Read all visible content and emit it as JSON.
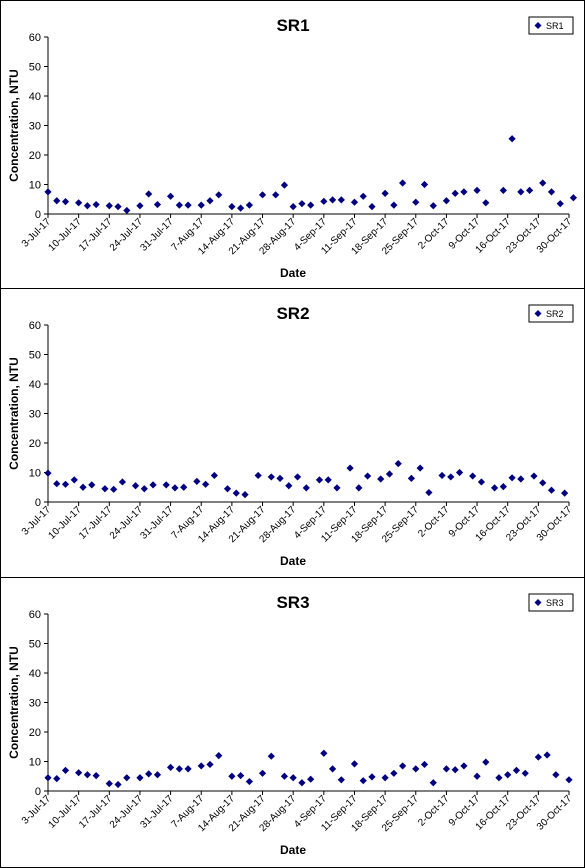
{
  "chart_data": [
    {
      "type": "scatter",
      "title": "SR1",
      "xlabel": "Date",
      "ylabel": "Concentration, NTU",
      "ylim": [
        0,
        60
      ],
      "yticks": [
        "0",
        "10",
        "20",
        "30",
        "40",
        "50",
        "60"
      ],
      "xlim": [
        "2017-07-03",
        "2017-10-30"
      ],
      "xticks": [
        "3-Jul-17",
        "10-Jul-17",
        "17-Jul-17",
        "24-Jul-17",
        "31-Jul-17",
        "7-Aug-17",
        "14-Aug-17",
        "21-Aug-17",
        "28-Aug-17",
        "4-Sep-17",
        "11-Sep-17",
        "18-Sep-17",
        "25-Sep-17",
        "2-Oct-17",
        "9-Oct-17",
        "16-Oct-17",
        "23-Oct-17",
        "30-Oct-17"
      ],
      "legend": "top-right",
      "series": [
        {
          "name": "SR1",
          "color": "#000080",
          "points": [
            [
              "2017-07-03",
              7.5
            ],
            [
              "2017-07-05",
              4.5
            ],
            [
              "2017-07-07",
              4.2
            ],
            [
              "2017-07-10",
              3.8
            ],
            [
              "2017-07-12",
              2.8
            ],
            [
              "2017-07-14",
              3.2
            ],
            [
              "2017-07-17",
              2.8
            ],
            [
              "2017-07-19",
              2.5
            ],
            [
              "2017-07-21",
              1.2
            ],
            [
              "2017-07-24",
              2.8
            ],
            [
              "2017-07-26",
              6.8
            ],
            [
              "2017-07-28",
              3.2
            ],
            [
              "2017-07-31",
              6.0
            ],
            [
              "2017-08-02",
              3.0
            ],
            [
              "2017-08-04",
              3.0
            ],
            [
              "2017-08-07",
              3.0
            ],
            [
              "2017-08-09",
              4.5
            ],
            [
              "2017-08-11",
              6.5
            ],
            [
              "2017-08-14",
              2.5
            ],
            [
              "2017-08-16",
              2.0
            ],
            [
              "2017-08-18",
              3.0
            ],
            [
              "2017-08-21",
              6.5
            ],
            [
              "2017-08-24",
              6.5
            ],
            [
              "2017-08-26",
              9.8
            ],
            [
              "2017-08-28",
              2.5
            ],
            [
              "2017-08-30",
              3.5
            ],
            [
              "2017-09-01",
              3.0
            ],
            [
              "2017-09-04",
              4.3
            ],
            [
              "2017-09-06",
              4.8
            ],
            [
              "2017-09-08",
              4.8
            ],
            [
              "2017-09-11",
              4.0
            ],
            [
              "2017-09-13",
              6.0
            ],
            [
              "2017-09-15",
              2.5
            ],
            [
              "2017-09-18",
              7.0
            ],
            [
              "2017-09-20",
              3.0
            ],
            [
              "2017-09-22",
              10.5
            ],
            [
              "2017-09-25",
              4.0
            ],
            [
              "2017-09-27",
              10.0
            ],
            [
              "2017-09-29",
              2.8
            ],
            [
              "2017-10-02",
              4.5
            ],
            [
              "2017-10-04",
              7.0
            ],
            [
              "2017-10-06",
              7.5
            ],
            [
              "2017-10-09",
              8.0
            ],
            [
              "2017-10-11",
              3.8
            ],
            [
              "2017-10-15",
              8.0
            ],
            [
              "2017-10-17",
              25.5
            ],
            [
              "2017-10-19",
              7.5
            ],
            [
              "2017-10-21",
              8.0
            ],
            [
              "2017-10-24",
              10.5
            ],
            [
              "2017-10-26",
              7.5
            ],
            [
              "2017-10-28",
              3.5
            ],
            [
              "2017-10-31",
              5.5
            ]
          ]
        }
      ]
    },
    {
      "type": "scatter",
      "title": "SR2",
      "xlabel": "Date",
      "ylabel": "Concentration, NTU",
      "ylim": [
        0,
        60
      ],
      "yticks": [
        "0",
        "10",
        "20",
        "30",
        "40",
        "50",
        "60"
      ],
      "xlim": [
        "2017-07-03",
        "2017-10-30"
      ],
      "xticks": [
        "3-Jul-17",
        "10-Jul-17",
        "17-Jul-17",
        "24-Jul-17",
        "31-Jul-17",
        "7-Aug-17",
        "14-Aug-17",
        "21-Aug-17",
        "28-Aug-17",
        "4-Sep-17",
        "11-Sep-17",
        "18-Sep-17",
        "25-Sep-17",
        "2-Oct-17",
        "9-Oct-17",
        "16-Oct-17",
        "23-Oct-17",
        "30-Oct-17"
      ],
      "legend": "top-right",
      "series": [
        {
          "name": "SR2",
          "color": "#000080",
          "points": [
            [
              "2017-07-03",
              9.8
            ],
            [
              "2017-07-05",
              6.2
            ],
            [
              "2017-07-07",
              6.0
            ],
            [
              "2017-07-09",
              7.5
            ],
            [
              "2017-07-11",
              5.0
            ],
            [
              "2017-07-13",
              5.8
            ],
            [
              "2017-07-16",
              4.5
            ],
            [
              "2017-07-18",
              4.3
            ],
            [
              "2017-07-20",
              6.8
            ],
            [
              "2017-07-23",
              5.5
            ],
            [
              "2017-07-25",
              4.5
            ],
            [
              "2017-07-27",
              5.8
            ],
            [
              "2017-07-30",
              5.8
            ],
            [
              "2017-08-01",
              4.8
            ],
            [
              "2017-08-03",
              5.0
            ],
            [
              "2017-08-06",
              7.0
            ],
            [
              "2017-08-08",
              6.0
            ],
            [
              "2017-08-10",
              9.0
            ],
            [
              "2017-08-13",
              4.5
            ],
            [
              "2017-08-15",
              3.0
            ],
            [
              "2017-08-17",
              2.5
            ],
            [
              "2017-08-20",
              9.0
            ],
            [
              "2017-08-23",
              8.5
            ],
            [
              "2017-08-25",
              8.0
            ],
            [
              "2017-08-27",
              5.5
            ],
            [
              "2017-08-29",
              8.5
            ],
            [
              "2017-08-31",
              4.8
            ],
            [
              "2017-09-03",
              7.5
            ],
            [
              "2017-09-05",
              7.5
            ],
            [
              "2017-09-07",
              4.8
            ],
            [
              "2017-09-10",
              11.5
            ],
            [
              "2017-09-12",
              4.8
            ],
            [
              "2017-09-14",
              8.8
            ],
            [
              "2017-09-17",
              7.8
            ],
            [
              "2017-09-19",
              9.5
            ],
            [
              "2017-09-21",
              13.0
            ],
            [
              "2017-09-24",
              8.0
            ],
            [
              "2017-09-26",
              11.5
            ],
            [
              "2017-09-28",
              3.2
            ],
            [
              "2017-10-01",
              9.0
            ],
            [
              "2017-10-03",
              8.5
            ],
            [
              "2017-10-05",
              10.0
            ],
            [
              "2017-10-08",
              8.8
            ],
            [
              "2017-10-10",
              6.8
            ],
            [
              "2017-10-13",
              4.8
            ],
            [
              "2017-10-15",
              5.2
            ],
            [
              "2017-10-17",
              8.2
            ],
            [
              "2017-10-19",
              7.8
            ],
            [
              "2017-10-22",
              8.8
            ],
            [
              "2017-10-24",
              6.5
            ],
            [
              "2017-10-26",
              4.0
            ],
            [
              "2017-10-29",
              3.0
            ]
          ]
        }
      ]
    },
    {
      "type": "scatter",
      "title": "SR3",
      "xlabel": "Date",
      "ylabel": "Concentration, NTU",
      "ylim": [
        0,
        60
      ],
      "yticks": [
        "0",
        "10",
        "20",
        "30",
        "40",
        "50",
        "60"
      ],
      "xlim": [
        "2017-07-03",
        "2017-10-30"
      ],
      "xticks": [
        "3-Jul-17",
        "10-Jul-17",
        "17-Jul-17",
        "24-Jul-17",
        "31-Jul-17",
        "7-Aug-17",
        "14-Aug-17",
        "21-Aug-17",
        "28-Aug-17",
        "4-Sep-17",
        "11-Sep-17",
        "18-Sep-17",
        "25-Sep-17",
        "2-Oct-17",
        "9-Oct-17",
        "16-Oct-17",
        "23-Oct-17",
        "30-Oct-17"
      ],
      "legend": "top-right",
      "series": [
        {
          "name": "SR3",
          "color": "#000080",
          "points": [
            [
              "2017-07-03",
              4.5
            ],
            [
              "2017-07-05",
              4.2
            ],
            [
              "2017-07-07",
              7.0
            ],
            [
              "2017-07-10",
              6.2
            ],
            [
              "2017-07-12",
              5.5
            ],
            [
              "2017-07-14",
              5.2
            ],
            [
              "2017-07-17",
              2.5
            ],
            [
              "2017-07-19",
              2.2
            ],
            [
              "2017-07-21",
              4.5
            ],
            [
              "2017-07-24",
              4.5
            ],
            [
              "2017-07-26",
              5.8
            ],
            [
              "2017-07-28",
              5.5
            ],
            [
              "2017-07-31",
              8.0
            ],
            [
              "2017-08-02",
              7.5
            ],
            [
              "2017-08-04",
              7.5
            ],
            [
              "2017-08-07",
              8.5
            ],
            [
              "2017-08-09",
              9.0
            ],
            [
              "2017-08-11",
              12.0
            ],
            [
              "2017-08-14",
              5.0
            ],
            [
              "2017-08-16",
              5.2
            ],
            [
              "2017-08-18",
              3.2
            ],
            [
              "2017-08-21",
              6.0
            ],
            [
              "2017-08-23",
              11.8
            ],
            [
              "2017-08-26",
              5.0
            ],
            [
              "2017-08-28",
              4.5
            ],
            [
              "2017-08-30",
              2.8
            ],
            [
              "2017-09-01",
              4.0
            ],
            [
              "2017-09-04",
              12.8
            ],
            [
              "2017-09-06",
              7.5
            ],
            [
              "2017-09-08",
              3.8
            ],
            [
              "2017-09-11",
              9.2
            ],
            [
              "2017-09-13",
              3.5
            ],
            [
              "2017-09-15",
              4.8
            ],
            [
              "2017-09-18",
              4.5
            ],
            [
              "2017-09-20",
              6.0
            ],
            [
              "2017-09-22",
              8.5
            ],
            [
              "2017-09-25",
              7.5
            ],
            [
              "2017-09-27",
              9.0
            ],
            [
              "2017-09-29",
              2.8
            ],
            [
              "2017-10-02",
              7.5
            ],
            [
              "2017-10-04",
              7.2
            ],
            [
              "2017-10-06",
              8.5
            ],
            [
              "2017-10-09",
              5.0
            ],
            [
              "2017-10-11",
              9.8
            ],
            [
              "2017-10-14",
              4.5
            ],
            [
              "2017-10-16",
              5.5
            ],
            [
              "2017-10-18",
              7.0
            ],
            [
              "2017-10-20",
              6.0
            ],
            [
              "2017-10-23",
              11.5
            ],
            [
              "2017-10-25",
              12.2
            ],
            [
              "2017-10-27",
              5.5
            ],
            [
              "2017-10-30",
              3.8
            ]
          ]
        }
      ]
    }
  ]
}
